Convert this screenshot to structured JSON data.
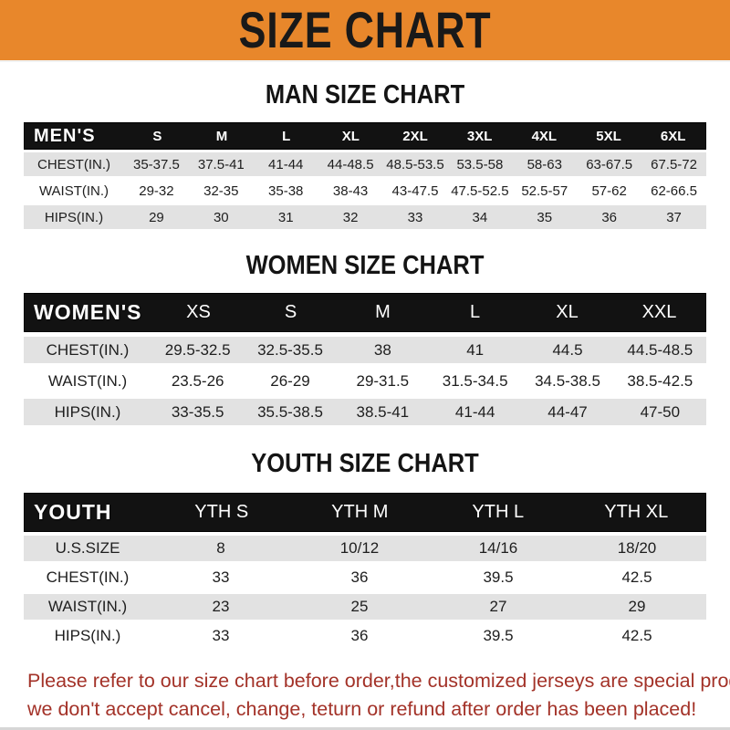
{
  "banner": {
    "title": "SIZE CHART"
  },
  "chart_data": [
    {
      "type": "table",
      "title": "MAN SIZE CHART",
      "corner_label": "MEN'S",
      "columns": [
        "S",
        "M",
        "L",
        "XL",
        "2XL",
        "3XL",
        "4XL",
        "5XL",
        "6XL"
      ],
      "rows": [
        {
          "label": "CHEST(IN.)",
          "values": [
            "35-37.5",
            "37.5-41",
            "41-44",
            "44-48.5",
            "48.5-53.5",
            "53.5-58",
            "58-63",
            "63-67.5",
            "67.5-72"
          ]
        },
        {
          "label": "WAIST(IN.)",
          "values": [
            "29-32",
            "32-35",
            "35-38",
            "38-43",
            "43-47.5",
            "47.5-52.5",
            "52.5-57",
            "57-62",
            "62-66.5"
          ]
        },
        {
          "label": "HIPS(IN.)",
          "values": [
            "29",
            "30",
            "31",
            "32",
            "33",
            "34",
            "35",
            "36",
            "37"
          ]
        }
      ]
    },
    {
      "type": "table",
      "title": "WOMEN SIZE CHART",
      "corner_label": "WOMEN'S",
      "columns": [
        "XS",
        "S",
        "M",
        "L",
        "XL",
        "XXL"
      ],
      "rows": [
        {
          "label": "CHEST(IN.)",
          "values": [
            "29.5-32.5",
            "32.5-35.5",
            "38",
            "41",
            "44.5",
            "44.5-48.5"
          ]
        },
        {
          "label": "WAIST(IN.)",
          "values": [
            "23.5-26",
            "26-29",
            "29-31.5",
            "31.5-34.5",
            "34.5-38.5",
            "38.5-42.5"
          ]
        },
        {
          "label": "HIPS(IN.)",
          "values": [
            "33-35.5",
            "35.5-38.5",
            "38.5-41",
            "41-44",
            "44-47",
            "47-50"
          ]
        }
      ]
    },
    {
      "type": "table",
      "title": "YOUTH SIZE CHART",
      "corner_label": "YOUTH",
      "columns": [
        "YTH S",
        "YTH M",
        "YTH L",
        "YTH XL"
      ],
      "rows": [
        {
          "label": "U.S.SIZE",
          "values": [
            "8",
            "10/12",
            "14/16",
            "18/20"
          ]
        },
        {
          "label": "CHEST(IN.)",
          "values": [
            "33",
            "36",
            "39.5",
            "42.5"
          ]
        },
        {
          "label": "WAIST(IN.)",
          "values": [
            "23",
            "25",
            "27",
            "29"
          ]
        },
        {
          "label": "HIPS(IN.)",
          "values": [
            "33",
            "36",
            "39.5",
            "42.5"
          ]
        }
      ]
    }
  ],
  "note": {
    "lines": [
      "Please refer to our size chart before order,the customized jerseys are special products,",
      "we don't accept cancel, change, teturn or refund after order has been placed!"
    ]
  },
  "colors": {
    "banner_orange": "#e8872b",
    "header_black": "#121212",
    "row_gray": "#e2e2e2",
    "note_red": "#a33228"
  }
}
